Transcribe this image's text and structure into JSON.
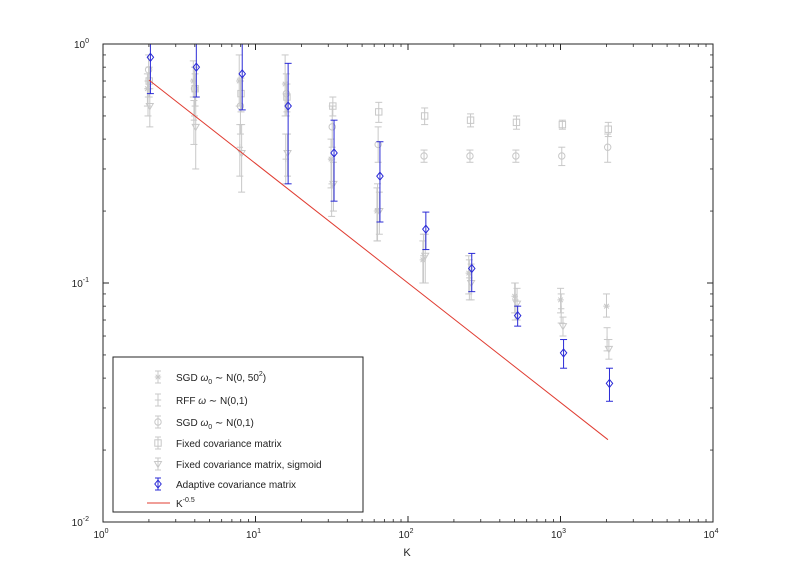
{
  "chart_data": {
    "type": "scatter",
    "xscale": "log",
    "yscale": "log",
    "xlim": [
      1,
      10000
    ],
    "ylim": [
      0.01,
      1
    ],
    "xlabel": "K",
    "ylabel": "",
    "grid": false,
    "legend_position": "bottom-left",
    "x_ticks": [
      {
        "value": 1,
        "base": "10",
        "exp": "0"
      },
      {
        "value": 10,
        "base": "10",
        "exp": "1"
      },
      {
        "value": 100,
        "base": "10",
        "exp": "2"
      },
      {
        "value": 1000,
        "base": "10",
        "exp": "3"
      },
      {
        "value": 10000,
        "base": "10",
        "exp": "4"
      }
    ],
    "y_ticks": [
      {
        "value": 0.01,
        "base": "10",
        "exp": "-2"
      },
      {
        "value": 0.1,
        "base": "10",
        "exp": "-1"
      },
      {
        "value": 1,
        "base": "10",
        "exp": "0"
      }
    ],
    "series": [
      {
        "legend": {
          "prefix": "SGD ",
          "greek": "ω",
          "sub": "0",
          "mid": " ∼ N(0, 50",
          "sup": "2",
          "suffix": ")"
        },
        "marker": "star",
        "color": "#c8c8c8",
        "x": [
          2,
          4,
          8,
          16,
          32,
          64,
          128,
          256,
          512,
          1024,
          2048
        ],
        "y": [
          0.65,
          0.7,
          0.7,
          0.68,
          0.33,
          0.2,
          0.125,
          0.11,
          0.088,
          0.085,
          0.08
        ],
        "err_low": [
          0.55,
          0.6,
          0.55,
          0.5,
          0.25,
          0.15,
          0.1,
          0.09,
          0.075,
          0.075,
          0.072
        ],
        "err_high": [
          0.75,
          0.85,
          0.9,
          0.9,
          0.4,
          0.25,
          0.15,
          0.13,
          0.1,
          0.095,
          0.09
        ]
      },
      {
        "legend": {
          "prefix": "RFF ",
          "greek": "ω",
          "sub": "",
          "mid": " ∼ N(0,1)",
          "sup": "",
          "suffix": ""
        },
        "marker": "plus",
        "color": "#c8c8c8",
        "x": [
          2,
          4,
          8,
          16,
          32,
          64,
          128,
          256,
          512,
          1024,
          2048
        ],
        "y": [
          0.6,
          0.48,
          0.37,
          0.33,
          0.26,
          0.2,
          0.13,
          0.105,
          0.085,
          0.078,
          0.058
        ],
        "err_low": [
          0.5,
          0.38,
          0.28,
          0.26,
          0.19,
          0.15,
          0.1,
          0.085,
          0.07,
          0.068,
          0.052
        ],
        "err_high": [
          0.7,
          0.58,
          0.46,
          0.42,
          0.33,
          0.26,
          0.16,
          0.125,
          0.1,
          0.09,
          0.065
        ]
      },
      {
        "legend": {
          "prefix": "SGD ",
          "greek": "ω",
          "sub": "0",
          "mid": " ∼ N(0,1)",
          "sup": "",
          "suffix": ""
        },
        "marker": "circle",
        "color": "#c8c8c8",
        "x": [
          2,
          4,
          8,
          16,
          32,
          64,
          128,
          256,
          512,
          1024,
          2048
        ],
        "y": [
          0.78,
          0.65,
          0.55,
          0.62,
          0.45,
          0.38,
          0.34,
          0.34,
          0.34,
          0.34,
          0.37
        ],
        "err_low": [
          0.65,
          0.5,
          0.42,
          0.5,
          0.37,
          0.32,
          0.32,
          0.32,
          0.32,
          0.31,
          0.32
        ],
        "err_high": [
          0.9,
          0.8,
          0.7,
          0.75,
          0.55,
          0.45,
          0.36,
          0.36,
          0.36,
          0.37,
          0.42
        ]
      },
      {
        "legend": {
          "prefix": "Fixed covariance matrix",
          "greek": "",
          "sub": "",
          "mid": "",
          "sup": "",
          "suffix": ""
        },
        "marker": "square",
        "color": "#c8c8c8",
        "x": [
          2,
          4,
          8,
          16,
          32,
          64,
          128,
          256,
          512,
          1024,
          2048
        ],
        "y": [
          0.7,
          0.65,
          0.62,
          0.6,
          0.55,
          0.52,
          0.5,
          0.48,
          0.47,
          0.46,
          0.44
        ],
        "err_low": [
          0.6,
          0.55,
          0.52,
          0.52,
          0.5,
          0.47,
          0.46,
          0.45,
          0.44,
          0.44,
          0.41
        ],
        "err_high": [
          0.8,
          0.75,
          0.72,
          0.68,
          0.6,
          0.57,
          0.54,
          0.51,
          0.5,
          0.48,
          0.47
        ]
      },
      {
        "legend": {
          "prefix": "Fixed covariance matrix, sigmoid",
          "greek": "",
          "sub": "",
          "mid": "",
          "sup": "",
          "suffix": ""
        },
        "marker": "triangle",
        "color": "#c8c8c8",
        "x": [
          2,
          4,
          8,
          16,
          32,
          64,
          128,
          256,
          512,
          1024,
          2048
        ],
        "y": [
          0.55,
          0.45,
          0.35,
          0.35,
          0.26,
          0.2,
          0.13,
          0.1,
          0.082,
          0.066,
          0.053
        ],
        "err_low": [
          0.45,
          0.3,
          0.24,
          0.28,
          0.2,
          0.16,
          0.1,
          0.085,
          0.07,
          0.06,
          0.048
        ],
        "err_high": [
          0.65,
          0.6,
          0.46,
          0.42,
          0.32,
          0.24,
          0.16,
          0.12,
          0.095,
          0.072,
          0.058
        ]
      },
      {
        "legend": {
          "prefix": "Adaptive covariance matrix",
          "greek": "",
          "sub": "",
          "mid": "",
          "sup": "",
          "suffix": ""
        },
        "marker": "diamond",
        "color": "#2a2ad6",
        "x": [
          2,
          4,
          8,
          16,
          32,
          64,
          128,
          256,
          512,
          1024,
          2048
        ],
        "y": [
          0.88,
          0.8,
          0.75,
          0.55,
          0.35,
          0.28,
          0.168,
          0.115,
          0.073,
          0.051,
          0.038
        ],
        "err_low": [
          0.62,
          0.6,
          0.53,
          0.26,
          0.22,
          0.18,
          0.138,
          0.092,
          0.066,
          0.044,
          0.032
        ],
        "err_high": [
          1.12,
          1.0,
          1.02,
          0.83,
          0.48,
          0.39,
          0.198,
          0.133,
          0.08,
          0.058,
          0.044
        ]
      },
      {
        "legend": {
          "prefix": "K",
          "greek": "",
          "sub": "",
          "mid": "",
          "sup": "-0.5",
          "suffix": ""
        },
        "marker": "line",
        "color": "#e03c31",
        "x": [
          2,
          2048
        ],
        "y": [
          0.7071,
          0.0221
        ]
      }
    ]
  }
}
